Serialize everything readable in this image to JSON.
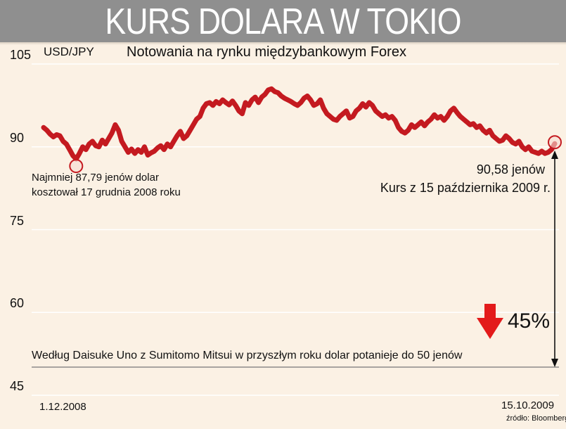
{
  "header": {
    "title": "KURS DOLARA W TOKIO",
    "subtitle": "Notowania na rynku międzybankowym Forex",
    "unit_label": "USD/JPY"
  },
  "annotations": {
    "min_note": "Najmniej 87,79 jenów dolar\nkosztował 17 grudnia 2008 roku",
    "last_value": "90,58 jenów",
    "last_date_note": "Kurs z 15 października 2009 r.",
    "forecast_note": "Według Daisuke Uno z Sumitomo Mitsui w przyszłym roku dolar potanieje do 50 jenów",
    "forecast_change": "45%"
  },
  "source": "źródło: Bloomberg",
  "colors": {
    "line": "#c41a20",
    "background": "#fbf1e4",
    "header": "#8f8f8f",
    "down_arrow": "#e31b1b"
  },
  "chart_data": {
    "type": "line",
    "title": "KURS DOLARA W TOKIO",
    "subtitle": "Notowania na rynku międzybankowym Forex",
    "ylabel": "USD/JPY",
    "ylim": [
      45,
      105
    ],
    "yticks": [
      105,
      90,
      75,
      60,
      45
    ],
    "x_start_label": "1.12.2008",
    "x_end_label": "15.10.2009",
    "grid": true,
    "series": [
      {
        "values": [
          93.5,
          93.0,
          92.3,
          91.8,
          92.2,
          92.0,
          91.0,
          90.5,
          89.5,
          88.4,
          87.79,
          88.8,
          90.0,
          89.5,
          90.5,
          91.0,
          90.2,
          90.0,
          91.2,
          90.5,
          91.5,
          92.5,
          94.0,
          93.0,
          91.0,
          90.0,
          89.0,
          89.6,
          88.8,
          89.5,
          89.0,
          90.0,
          88.5,
          88.9,
          89.2,
          89.8,
          90.2,
          89.5,
          90.5,
          90.0,
          91.0,
          92.0,
          92.8,
          91.5,
          92.0,
          93.0,
          94.0,
          95.0,
          95.5,
          97.0,
          97.8,
          98.0,
          97.5,
          98.2,
          97.8,
          98.5,
          98.0,
          97.6,
          98.3,
          97.5,
          96.5,
          96.0,
          98.0,
          97.5,
          98.5,
          99.0,
          98.0,
          99.0,
          99.5,
          100.3,
          100.5,
          100.0,
          99.8,
          99.2,
          98.8,
          98.5,
          98.2,
          97.8,
          97.5,
          98.0,
          98.8,
          99.2,
          98.5,
          97.5,
          97.8,
          98.5,
          97.0,
          96.0,
          95.5,
          95.0,
          94.8,
          95.5,
          96.0,
          96.5,
          95.2,
          95.5,
          96.5,
          97.0,
          97.8,
          97.2,
          98.0,
          97.5,
          96.5,
          96.0,
          95.5,
          95.8,
          95.2,
          95.5,
          94.8,
          93.5,
          92.8,
          92.5,
          93.0,
          94.0,
          93.5,
          94.0,
          94.5,
          93.8,
          94.5,
          95.0,
          95.8,
          95.2,
          95.5,
          94.8,
          95.5,
          96.5,
          97.0,
          96.2,
          95.5,
          95.0,
          94.5,
          94.0,
          94.2,
          93.5,
          93.8,
          93.0,
          92.5,
          93.0,
          92.0,
          91.5,
          91.0,
          91.2,
          92.0,
          91.5,
          90.8,
          90.5,
          91.0,
          90.0,
          89.5,
          90.0,
          89.2,
          89.0,
          88.8,
          89.2,
          88.8,
          89.0,
          89.5,
          90.58
        ]
      }
    ],
    "annotations": [
      {
        "label": "Najmniej 87,79 jenów dolar kosztował 17 grudnia 2008 roku",
        "y": 87.79
      },
      {
        "label": "90,58 jenów Kurs z 15 października 2009 r.",
        "y": 90.58
      },
      {
        "label": "Według Daisuke Uno z Sumitomo Mitsui w przyszłym roku dolar potanieje do 50 jenów",
        "y": 50
      },
      {
        "label": "45%",
        "from": 90.58,
        "to": 50
      }
    ]
  }
}
